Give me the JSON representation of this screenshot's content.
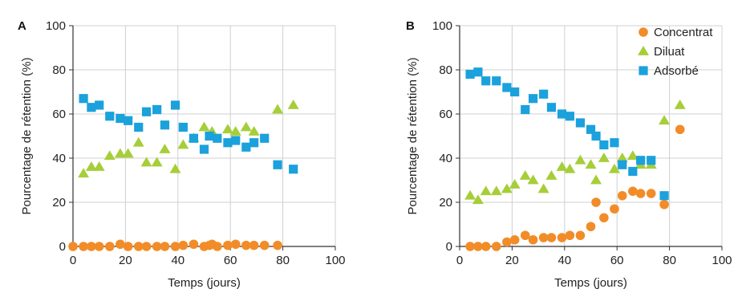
{
  "chart_data": [
    {
      "panel_label": "A",
      "type": "scatter",
      "xlabel": "Temps (jours)",
      "ylabel": "Pourcentage de rétention (%)",
      "xlim": [
        0,
        100
      ],
      "ylim": [
        0,
        100
      ],
      "xticks": [
        "0",
        "20",
        "40",
        "60",
        "80",
        "100"
      ],
      "yticks": [
        "0",
        "20",
        "40",
        "60",
        "80",
        "100"
      ],
      "grid": true,
      "series": [
        {
          "name": "Concentrat",
          "marker": "circle",
          "color": "#f28c28",
          "points": [
            [
              0,
              0
            ],
            [
              4,
              0
            ],
            [
              7,
              0
            ],
            [
              10,
              0
            ],
            [
              14,
              0
            ],
            [
              18,
              1
            ],
            [
              21,
              0
            ],
            [
              25,
              0
            ],
            [
              28,
              0
            ],
            [
              32,
              0
            ],
            [
              35,
              0
            ],
            [
              39,
              0
            ],
            [
              42,
              0.5
            ],
            [
              46,
              1
            ],
            [
              50,
              0
            ],
            [
              52,
              0.5
            ],
            [
              53,
              1
            ],
            [
              55,
              0
            ],
            [
              59,
              0.5
            ],
            [
              62,
              1
            ],
            [
              66,
              0.5
            ],
            [
              69,
              0.5
            ],
            [
              73,
              0.5
            ],
            [
              78,
              0.5
            ]
          ]
        },
        {
          "name": "Diluat",
          "marker": "triangle",
          "color": "#a6ce39",
          "points": [
            [
              4,
              33
            ],
            [
              7,
              36
            ],
            [
              10,
              36
            ],
            [
              14,
              41
            ],
            [
              18,
              42
            ],
            [
              21,
              42
            ],
            [
              25,
              47
            ],
            [
              28,
              38
            ],
            [
              32,
              38
            ],
            [
              35,
              44
            ],
            [
              39,
              35
            ],
            [
              42,
              46
            ],
            [
              46,
              49
            ],
            [
              50,
              54
            ],
            [
              53,
              52
            ],
            [
              59,
              53
            ],
            [
              62,
              52
            ],
            [
              66,
              54
            ],
            [
              69,
              52
            ],
            [
              78,
              62
            ],
            [
              84,
              64
            ]
          ]
        },
        {
          "name": "Adsorbé",
          "marker": "square",
          "color": "#1ba1dc",
          "points": [
            [
              4,
              67
            ],
            [
              7,
              63
            ],
            [
              10,
              64
            ],
            [
              14,
              59
            ],
            [
              18,
              58
            ],
            [
              21,
              57
            ],
            [
              25,
              54
            ],
            [
              28,
              61
            ],
            [
              32,
              62
            ],
            [
              35,
              55
            ],
            [
              39,
              64
            ],
            [
              42,
              54
            ],
            [
              46,
              49
            ],
            [
              50,
              44
            ],
            [
              52,
              50
            ],
            [
              55,
              49
            ],
            [
              59,
              47
            ],
            [
              62,
              48
            ],
            [
              66,
              45
            ],
            [
              69,
              47
            ],
            [
              73,
              49
            ],
            [
              78,
              37
            ],
            [
              84,
              35
            ]
          ]
        }
      ]
    },
    {
      "panel_label": "B",
      "type": "scatter",
      "xlabel": "Temps (jours)",
      "ylabel": "Pourcentage de rétention (%)",
      "xlim": [
        0,
        100
      ],
      "ylim": [
        0,
        100
      ],
      "xticks": [
        "0",
        "20",
        "40",
        "60",
        "80",
        "100"
      ],
      "yticks": [
        "0",
        "20",
        "40",
        "60",
        "80",
        "100"
      ],
      "grid": true,
      "legend": {
        "placement": "top-right",
        "entries": [
          {
            "name": "Concentrat",
            "marker": "circle",
            "color": "#f28c28"
          },
          {
            "name": "Diluat",
            "marker": "triangle",
            "color": "#a6ce39"
          },
          {
            "name": "Adsorbé",
            "marker": "square",
            "color": "#1ba1dc"
          }
        ]
      },
      "series": [
        {
          "name": "Concentrat",
          "marker": "circle",
          "color": "#f28c28",
          "points": [
            [
              4,
              0
            ],
            [
              7,
              0
            ],
            [
              10,
              0
            ],
            [
              14,
              0
            ],
            [
              18,
              2
            ],
            [
              21,
              3
            ],
            [
              25,
              5
            ],
            [
              28,
              3
            ],
            [
              32,
              4
            ],
            [
              35,
              4
            ],
            [
              39,
              4
            ],
            [
              42,
              5
            ],
            [
              46,
              5
            ],
            [
              50,
              9
            ],
            [
              52,
              20
            ],
            [
              55,
              13
            ],
            [
              59,
              17
            ],
            [
              62,
              23
            ],
            [
              66,
              25
            ],
            [
              69,
              24
            ],
            [
              73,
              24
            ],
            [
              78,
              19
            ],
            [
              84,
              53
            ]
          ]
        },
        {
          "name": "Diluat",
          "marker": "triangle",
          "color": "#a6ce39",
          "points": [
            [
              4,
              23
            ],
            [
              7,
              21
            ],
            [
              10,
              25
            ],
            [
              14,
              25
            ],
            [
              18,
              26
            ],
            [
              21,
              28
            ],
            [
              25,
              32
            ],
            [
              28,
              30
            ],
            [
              32,
              26
            ],
            [
              35,
              32
            ],
            [
              39,
              36
            ],
            [
              42,
              35
            ],
            [
              46,
              39
            ],
            [
              50,
              37
            ],
            [
              52,
              30
            ],
            [
              55,
              40
            ],
            [
              59,
              35
            ],
            [
              62,
              40
            ],
            [
              66,
              41
            ],
            [
              69,
              37
            ],
            [
              73,
              37
            ],
            [
              78,
              57
            ],
            [
              84,
              64
            ]
          ]
        },
        {
          "name": "Adsorbé",
          "marker": "square",
          "color": "#1ba1dc",
          "points": [
            [
              4,
              78
            ],
            [
              7,
              79
            ],
            [
              10,
              75
            ],
            [
              14,
              75
            ],
            [
              18,
              72
            ],
            [
              21,
              70
            ],
            [
              25,
              62
            ],
            [
              28,
              67
            ],
            [
              32,
              69
            ],
            [
              35,
              63
            ],
            [
              39,
              60
            ],
            [
              42,
              59
            ],
            [
              46,
              56
            ],
            [
              50,
              53
            ],
            [
              52,
              50
            ],
            [
              55,
              46
            ],
            [
              59,
              47
            ],
            [
              62,
              37
            ],
            [
              66,
              34
            ],
            [
              69,
              39
            ],
            [
              73,
              39
            ],
            [
              78,
              23
            ]
          ]
        }
      ]
    }
  ]
}
